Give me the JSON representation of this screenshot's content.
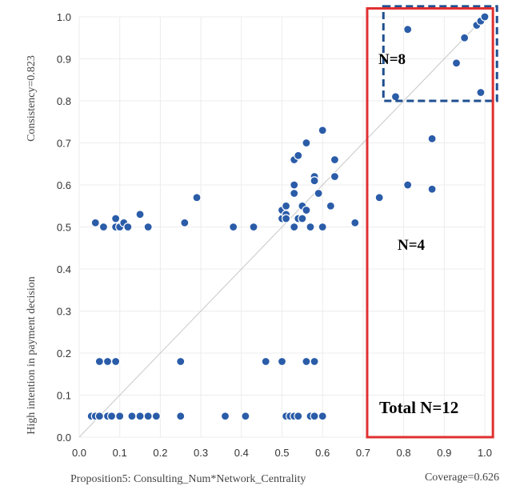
{
  "chart_data": {
    "type": "scatter",
    "xlabel": "Proposition5: Consulting_Num*Network_Centrality",
    "ylabel": "High intention in payment decision",
    "consistency_label": "Consistency=0.823",
    "coverage_label": "Coverage=0.626",
    "xlim": [
      0,
      1
    ],
    "ylim": [
      0,
      1
    ],
    "x_ticks": [
      "0.0",
      "0.1",
      "0.2",
      "0.3",
      "0.4",
      "0.5",
      "0.6",
      "0.7",
      "0.8",
      "0.9",
      "1.0"
    ],
    "y_ticks": [
      "0.0",
      "0.1",
      "0.2",
      "0.3",
      "0.4",
      "0.5",
      "0.6",
      "0.7",
      "0.8",
      "0.9",
      "1.0"
    ],
    "grid": true,
    "diagonal_reference": true,
    "marker_color": "#2a5ca8",
    "points": [
      {
        "x": 0.04,
        "y": 0.51
      },
      {
        "x": 0.06,
        "y": 0.5
      },
      {
        "x": 0.09,
        "y": 0.52
      },
      {
        "x": 0.09,
        "y": 0.5
      },
      {
        "x": 0.1,
        "y": 0.5
      },
      {
        "x": 0.11,
        "y": 0.51
      },
      {
        "x": 0.12,
        "y": 0.5
      },
      {
        "x": 0.15,
        "y": 0.53
      },
      {
        "x": 0.17,
        "y": 0.5
      },
      {
        "x": 0.26,
        "y": 0.51
      },
      {
        "x": 0.29,
        "y": 0.57
      },
      {
        "x": 0.38,
        "y": 0.5
      },
      {
        "x": 0.43,
        "y": 0.5
      },
      {
        "x": 0.5,
        "y": 0.54
      },
      {
        "x": 0.5,
        "y": 0.52
      },
      {
        "x": 0.51,
        "y": 0.55
      },
      {
        "x": 0.51,
        "y": 0.53
      },
      {
        "x": 0.51,
        "y": 0.52
      },
      {
        "x": 0.53,
        "y": 0.66
      },
      {
        "x": 0.53,
        "y": 0.6
      },
      {
        "x": 0.53,
        "y": 0.58
      },
      {
        "x": 0.53,
        "y": 0.5
      },
      {
        "x": 0.54,
        "y": 0.67
      },
      {
        "x": 0.54,
        "y": 0.52
      },
      {
        "x": 0.55,
        "y": 0.52
      },
      {
        "x": 0.55,
        "y": 0.55
      },
      {
        "x": 0.56,
        "y": 0.7
      },
      {
        "x": 0.56,
        "y": 0.54
      },
      {
        "x": 0.57,
        "y": 0.5
      },
      {
        "x": 0.58,
        "y": 0.62
      },
      {
        "x": 0.58,
        "y": 0.61
      },
      {
        "x": 0.59,
        "y": 0.58
      },
      {
        "x": 0.6,
        "y": 0.73
      },
      {
        "x": 0.6,
        "y": 0.5
      },
      {
        "x": 0.62,
        "y": 0.55
      },
      {
        "x": 0.63,
        "y": 0.66
      },
      {
        "x": 0.63,
        "y": 0.62
      },
      {
        "x": 0.68,
        "y": 0.51
      },
      {
        "x": 0.74,
        "y": 0.57
      },
      {
        "x": 0.81,
        "y": 0.6
      },
      {
        "x": 0.87,
        "y": 0.71
      },
      {
        "x": 0.87,
        "y": 0.59
      },
      {
        "x": 0.78,
        "y": 0.81
      },
      {
        "x": 0.81,
        "y": 0.97
      },
      {
        "x": 0.93,
        "y": 0.89
      },
      {
        "x": 0.95,
        "y": 0.95
      },
      {
        "x": 0.98,
        "y": 0.98
      },
      {
        "x": 0.99,
        "y": 0.99
      },
      {
        "x": 1.0,
        "y": 1.0
      },
      {
        "x": 0.99,
        "y": 0.82
      },
      {
        "x": 0.05,
        "y": 0.18
      },
      {
        "x": 0.07,
        "y": 0.18
      },
      {
        "x": 0.09,
        "y": 0.18
      },
      {
        "x": 0.25,
        "y": 0.18
      },
      {
        "x": 0.46,
        "y": 0.18
      },
      {
        "x": 0.5,
        "y": 0.18
      },
      {
        "x": 0.56,
        "y": 0.18
      },
      {
        "x": 0.58,
        "y": 0.18
      },
      {
        "x": 0.03,
        "y": 0.05
      },
      {
        "x": 0.04,
        "y": 0.05
      },
      {
        "x": 0.05,
        "y": 0.05
      },
      {
        "x": 0.07,
        "y": 0.05
      },
      {
        "x": 0.08,
        "y": 0.05
      },
      {
        "x": 0.1,
        "y": 0.05
      },
      {
        "x": 0.13,
        "y": 0.05
      },
      {
        "x": 0.15,
        "y": 0.05
      },
      {
        "x": 0.17,
        "y": 0.05
      },
      {
        "x": 0.19,
        "y": 0.05
      },
      {
        "x": 0.25,
        "y": 0.05
      },
      {
        "x": 0.36,
        "y": 0.05
      },
      {
        "x": 0.41,
        "y": 0.05
      },
      {
        "x": 0.51,
        "y": 0.05
      },
      {
        "x": 0.52,
        "y": 0.05
      },
      {
        "x": 0.53,
        "y": 0.05
      },
      {
        "x": 0.54,
        "y": 0.05
      },
      {
        "x": 0.57,
        "y": 0.05
      },
      {
        "x": 0.58,
        "y": 0.05
      },
      {
        "x": 0.6,
        "y": 0.05
      }
    ],
    "annotations": [
      {
        "id": "dashed-box",
        "text": "N=8",
        "x_range": [
          0.75,
          1.03
        ],
        "y_range": [
          0.8,
          1.025
        ],
        "color": "#1f4f8f",
        "style": "dashed"
      },
      {
        "id": "red-box",
        "text": "N=4",
        "x_range": [
          0.71,
          1.02
        ],
        "y_range": [
          0.0,
          1.02
        ],
        "color": "#e03030",
        "style": "solid"
      },
      {
        "id": "total",
        "text": "Total N=12"
      }
    ]
  }
}
